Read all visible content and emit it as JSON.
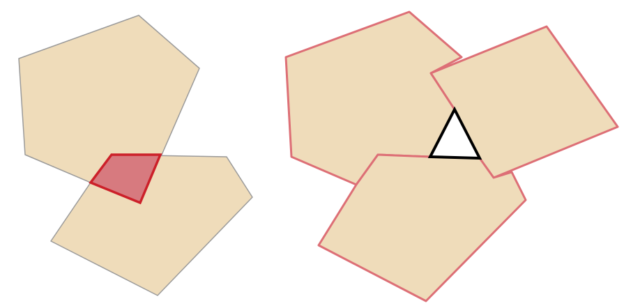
{
  "colors": {
    "background": "#ffffff",
    "polygon_fill": "#efdcba",
    "polygon_outline": "#9a9a9a",
    "intersection_fill": "#d77a7f",
    "intersection_outline": "#cc2029",
    "union_outline": "#dd6f76",
    "gap_outline": "#000000",
    "gap_fill": "#ffffff"
  },
  "panels": [
    {
      "name": "intersection-panel",
      "shapes": [
        "pentagon",
        "pentagon"
      ],
      "highlight": "overlap-region"
    },
    {
      "name": "gap-panel",
      "shapes": [
        "pentagon",
        "quadrilateral",
        "pentagon"
      ],
      "highlight": "gap-triangle"
    }
  ]
}
